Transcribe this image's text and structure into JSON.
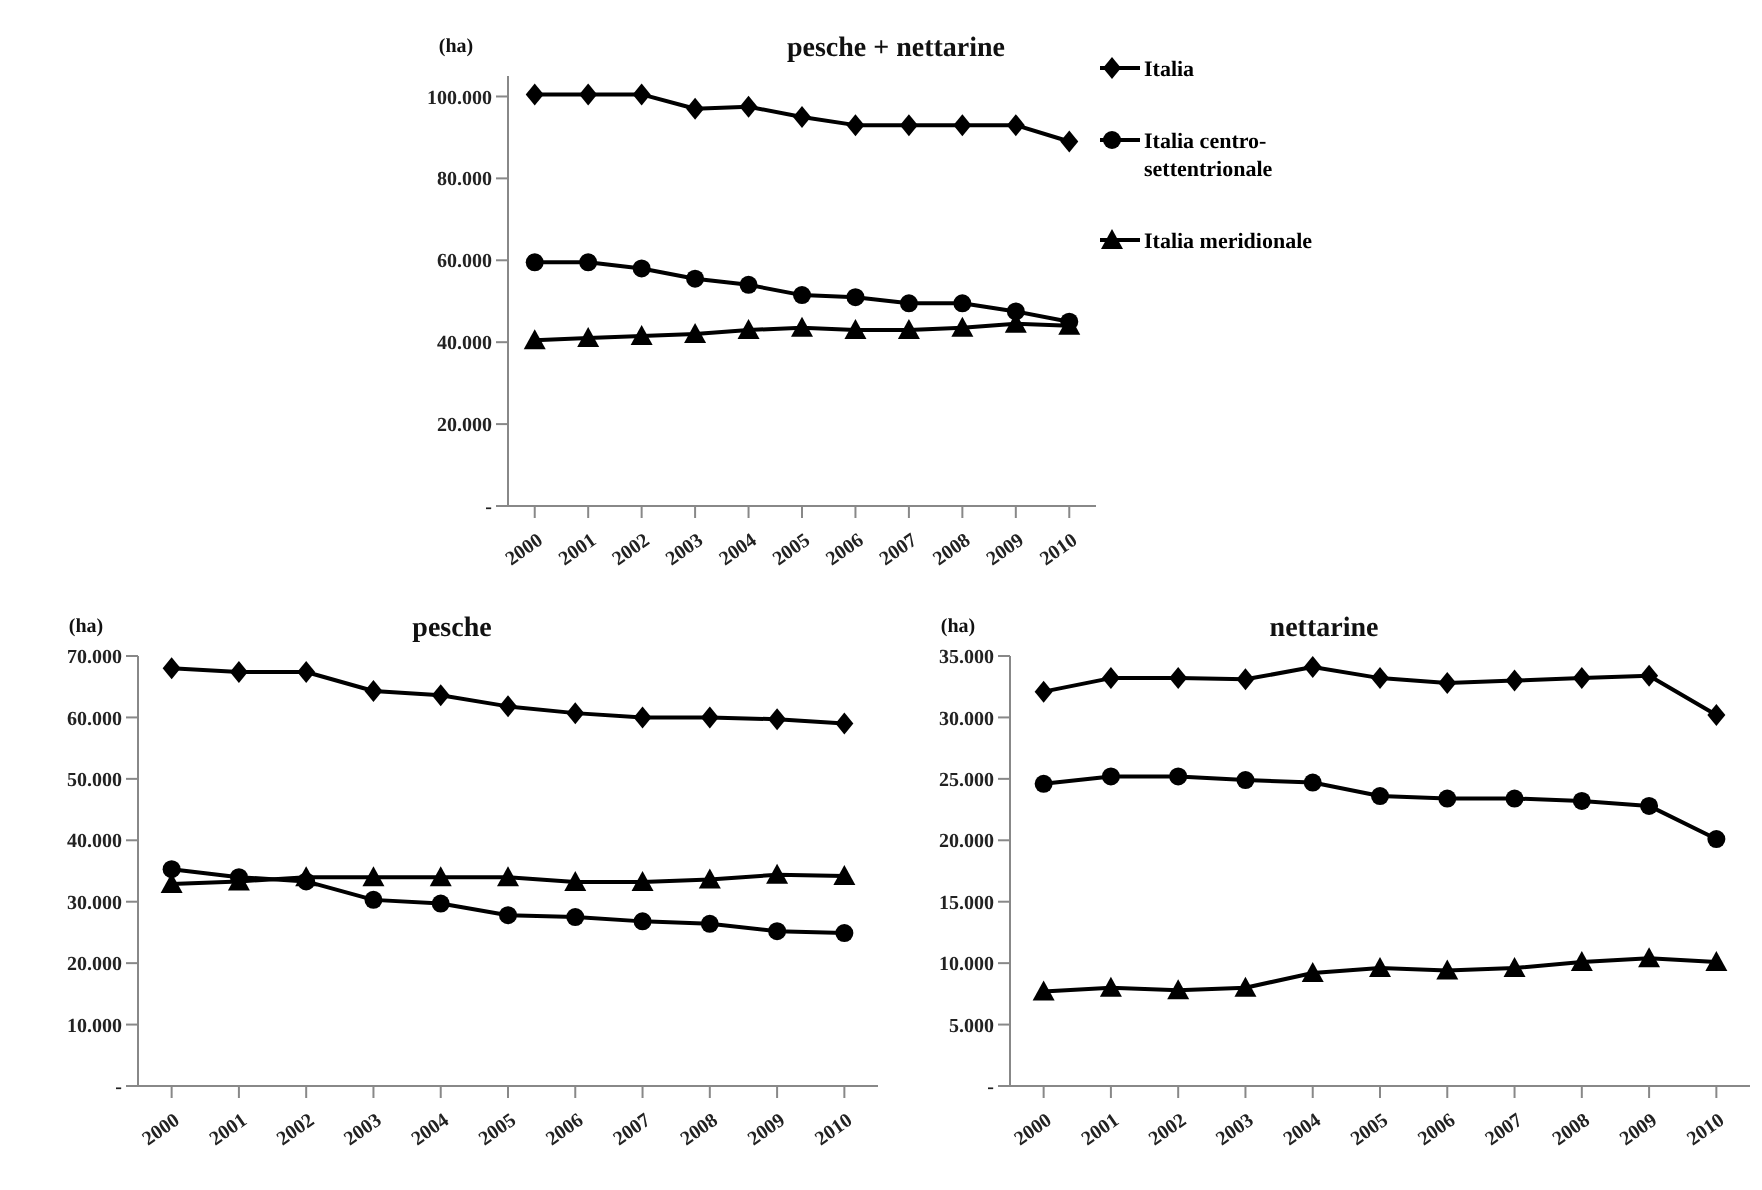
{
  "chart_data": [
    {
      "type": "line",
      "title": "pesche + nettarine",
      "ylabel": "(ha)",
      "categories": [
        "2000",
        "2001",
        "2002",
        "2003",
        "2004",
        "2005",
        "2006",
        "2007",
        "2008",
        "2009",
        "2010"
      ],
      "series": [
        {
          "name": "Italia",
          "color": "#000000",
          "marker": "diamond",
          "values": [
            100500,
            100500,
            100500,
            97000,
            97500,
            95000,
            93000,
            93000,
            93000,
            93000,
            89000
          ]
        },
        {
          "name": "Italia centro-settentrionale",
          "color": "#000000",
          "marker": "circle",
          "values": [
            59500,
            59500,
            58000,
            55500,
            54000,
            51500,
            51000,
            49500,
            49500,
            47500,
            45000
          ]
        },
        {
          "name": "Italia meridionale",
          "color": "#000000",
          "marker": "triangle",
          "values": [
            40500,
            41000,
            41500,
            42000,
            43000,
            43500,
            43000,
            43000,
            43500,
            44500,
            44000
          ]
        }
      ],
      "ylim": [
        0,
        105000
      ],
      "yticks": [
        {
          "value": 0,
          "label": "-"
        },
        {
          "value": 20000,
          "label": "20.000"
        },
        {
          "value": 40000,
          "label": "40.000"
        },
        {
          "value": 60000,
          "label": "60.000"
        },
        {
          "value": 80000,
          "label": "80.000"
        },
        {
          "value": 100000,
          "label": "100.000"
        }
      ],
      "grid": false,
      "legend": "right"
    },
    {
      "type": "line",
      "title": "pesche",
      "ylabel": "(ha)",
      "categories": [
        "2000",
        "2001",
        "2002",
        "2003",
        "2004",
        "2005",
        "2006",
        "2007",
        "2008",
        "2009",
        "2010"
      ],
      "series": [
        {
          "color": "#000000",
          "marker": "diamond",
          "values": [
            68000,
            67400,
            67400,
            64300,
            63600,
            61800,
            60700,
            60000,
            60000,
            59700,
            59000
          ]
        },
        {
          "color": "#000000",
          "marker": "circle",
          "values": [
            35300,
            34000,
            33300,
            30300,
            29700,
            27800,
            27500,
            26800,
            26400,
            25200,
            24900
          ]
        },
        {
          "color": "#000000",
          "marker": "triangle",
          "values": [
            32900,
            33300,
            34000,
            34000,
            34000,
            34000,
            33200,
            33200,
            33600,
            34400,
            34200
          ]
        }
      ],
      "ylim": [
        0,
        70000
      ],
      "yticks": [
        {
          "value": 0,
          "label": "-"
        },
        {
          "value": 10000,
          "label": "10.000"
        },
        {
          "value": 20000,
          "label": "20.000"
        },
        {
          "value": 30000,
          "label": "30.000"
        },
        {
          "value": 40000,
          "label": "40.000"
        },
        {
          "value": 50000,
          "label": "50.000"
        },
        {
          "value": 60000,
          "label": "60.000"
        },
        {
          "value": 70000,
          "label": "70.000"
        }
      ],
      "grid": false,
      "legend": false
    },
    {
      "type": "line",
      "title": "nettarine",
      "ylabel": "(ha)",
      "categories": [
        "2000",
        "2001",
        "2002",
        "2003",
        "2004",
        "2005",
        "2006",
        "2007",
        "2008",
        "2009",
        "2010"
      ],
      "series": [
        {
          "color": "#000000",
          "marker": "diamond",
          "values": [
            32100,
            33200,
            33200,
            33100,
            34100,
            33200,
            32800,
            33000,
            33200,
            33400,
            30200
          ]
        },
        {
          "color": "#000000",
          "marker": "circle",
          "values": [
            24600,
            25200,
            25200,
            24900,
            24700,
            23600,
            23400,
            23400,
            23200,
            22800,
            20100
          ]
        },
        {
          "color": "#000000",
          "marker": "triangle",
          "values": [
            7700,
            8000,
            7800,
            8000,
            9200,
            9600,
            9400,
            9600,
            10100,
            10400,
            10100
          ]
        }
      ],
      "ylim": [
        0,
        35000
      ],
      "yticks": [
        {
          "value": 0,
          "label": "-"
        },
        {
          "value": 5000,
          "label": "5.000"
        },
        {
          "value": 10000,
          "label": "10.000"
        },
        {
          "value": 15000,
          "label": "15.000"
        },
        {
          "value": 20000,
          "label": "20.000"
        },
        {
          "value": 25000,
          "label": "25.000"
        },
        {
          "value": 30000,
          "label": "30.000"
        },
        {
          "value": 35000,
          "label": "35.000"
        }
      ],
      "grid": false,
      "legend": false
    }
  ]
}
